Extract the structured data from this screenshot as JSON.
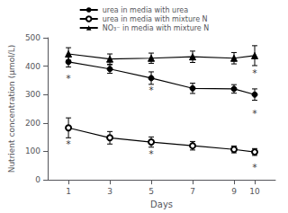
{
  "chart_data": {
    "type": "line",
    "xlabel": "Days",
    "ylabel": "Nutrient concentration (μmol/L)",
    "x": [
      1,
      3,
      5,
      7,
      9,
      10
    ],
    "xlim": [
      0,
      11
    ],
    "xticks": [
      1,
      3,
      5,
      7,
      9,
      10
    ],
    "ylim": [
      0,
      500
    ],
    "yticks": [
      0,
      100,
      200,
      300,
      400,
      500
    ],
    "grid": false,
    "legend": "top",
    "series": [
      {
        "name": "urea in media with urea",
        "color": "black",
        "marker": "circle",
        "values": [
          415,
          390,
          358,
          322,
          320,
          300
        ],
        "errors": [
          18,
          15,
          22,
          18,
          15,
          20
        ]
      },
      {
        "name": "urea in media with mixture N",
        "color": "black",
        "marker": "open_circle",
        "values": [
          183,
          148,
          133,
          120,
          107,
          98
        ],
        "errors": [
          35,
          22,
          18,
          15,
          12,
          12
        ]
      },
      {
        "name": "NO₃⁻ in media with mixture N",
        "color": "black",
        "marker": "triangle",
        "values": [
          443,
          425,
          428,
          433,
          428,
          437
        ],
        "errors": [
          22,
          18,
          18,
          20,
          20,
          35
        ]
      }
    ],
    "annotations": [
      {
        "x": 1,
        "y": 370,
        "text": "*"
      },
      {
        "x": 5,
        "y": 328,
        "text": "*"
      },
      {
        "x": 10,
        "y": 248,
        "text": "*"
      },
      {
        "x": 1,
        "y": 138,
        "text": "*"
      },
      {
        "x": 5,
        "y": 105,
        "text": "*"
      },
      {
        "x": 10,
        "y": 58,
        "text": "*"
      },
      {
        "x": 10,
        "y": 390,
        "text": "*"
      }
    ]
  }
}
